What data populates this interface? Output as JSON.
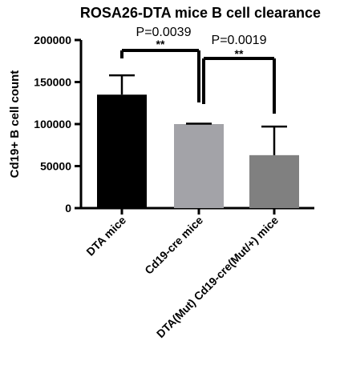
{
  "chart_data": {
    "type": "bar",
    "title": "ROSA26-DTA mice B cell clearance",
    "xlabel": "",
    "ylabel": "Cd19+ B cell count",
    "ylim": [
      0,
      200000
    ],
    "yticks": [
      0,
      50000,
      100000,
      150000,
      200000
    ],
    "ytick_labels": [
      "0",
      "50000",
      "100000",
      "150000",
      "200000"
    ],
    "categories": [
      "DTA mice",
      "Cd19-cre mice",
      "DTA(Mut) Cd19-cre(Mut/+) mice"
    ],
    "values": [
      135000,
      100000,
      63000
    ],
    "error_upper": [
      158000,
      100500,
      97000
    ],
    "colors": [
      "#000000",
      "#a3a3a8",
      "#808080"
    ],
    "grid": false,
    "legend": "none",
    "comparisons": [
      {
        "from": 0,
        "to": 1,
        "p_label": "P=0.0039",
        "stars": "**"
      },
      {
        "from": 1,
        "to": 2,
        "p_label": "P=0.0019",
        "stars": "**"
      }
    ]
  }
}
